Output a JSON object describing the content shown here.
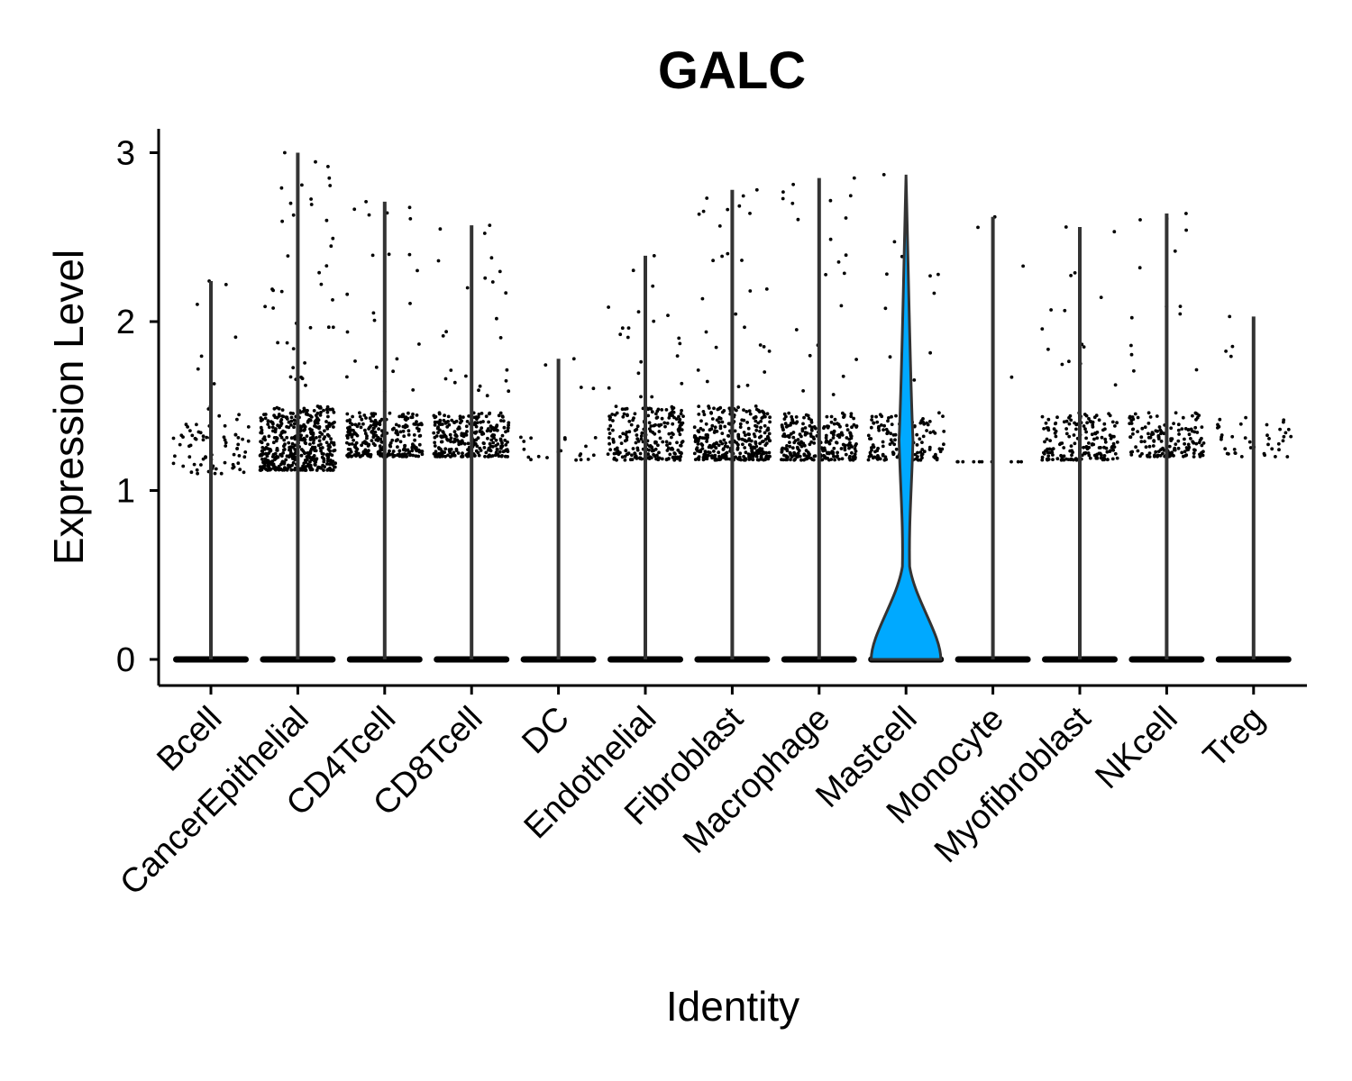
{
  "chart_data": {
    "type": "violin",
    "title": "GALC",
    "xlabel": "Identity",
    "ylabel": "Expression Level",
    "ylim": [
      -0.15,
      3.15
    ],
    "yticks": [
      0,
      1,
      2,
      3
    ],
    "grid": false,
    "legend": "none",
    "fill_color": "#00A9FF",
    "categories": [
      "Bcell",
      "CancerEpithelial",
      "CD4Tcell",
      "CD8Tcell",
      "DC",
      "Endothelial",
      "Fibroblast",
      "Macrophage",
      "Mastcell",
      "Monocyte",
      "Myofibroblast",
      "NKcell",
      "Treg"
    ],
    "max_expression": [
      2.24,
      3.0,
      2.71,
      2.57,
      1.78,
      2.39,
      2.78,
      2.85,
      2.87,
      2.62,
      2.56,
      2.64,
      2.03
    ],
    "nonzero_cluster_range": [
      [
        1.1,
        1.5
      ],
      [
        1.12,
        1.5
      ],
      [
        1.2,
        1.46
      ],
      [
        1.2,
        1.46
      ],
      [
        1.18,
        1.32
      ],
      [
        1.18,
        1.5
      ],
      [
        1.18,
        1.5
      ],
      [
        1.18,
        1.46
      ],
      [
        1.18,
        1.46
      ],
      [
        1.17,
        1.17
      ],
      [
        1.18,
        1.46
      ],
      [
        1.2,
        1.46
      ],
      [
        1.2,
        1.46
      ]
    ],
    "nonzero_cells_estimate": [
      70,
      450,
      260,
      280,
      20,
      230,
      320,
      250,
      150,
      10,
      170,
      150,
      40
    ],
    "violin_width": [
      0.04,
      0.02,
      0.03,
      0.03,
      0.02,
      0.03,
      0.03,
      0.03,
      0.92,
      0.02,
      0.03,
      0.03,
      0.02
    ]
  }
}
